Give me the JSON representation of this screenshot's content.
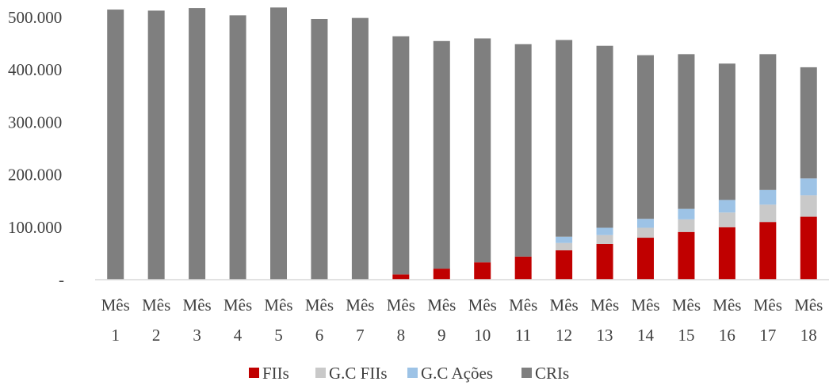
{
  "chart_data": {
    "type": "bar",
    "stacked": true,
    "title": "",
    "xlabel": "",
    "ylabel": "",
    "categories": [
      [
        "Mês",
        "1"
      ],
      [
        "Mês",
        "2"
      ],
      [
        "Mês",
        "3"
      ],
      [
        "Mês",
        "4"
      ],
      [
        "Mês",
        "5"
      ],
      [
        "Mês",
        "6"
      ],
      [
        "Mês",
        "7"
      ],
      [
        "Mês",
        "8"
      ],
      [
        "Mês",
        "9"
      ],
      [
        "Mês",
        "10"
      ],
      [
        "Mês",
        "11"
      ],
      [
        "Mês",
        "12"
      ],
      [
        "Mês",
        "13"
      ],
      [
        "Mês",
        "14"
      ],
      [
        "Mês",
        "15"
      ],
      [
        "Mês",
        "16"
      ],
      [
        "Mês",
        "17"
      ],
      [
        "Mês",
        "18"
      ]
    ],
    "ylim": [
      0,
      500000
    ],
    "yticks": [
      {
        "value": 0,
        "label": "-"
      },
      {
        "value": 100000,
        "label": "100.000"
      },
      {
        "value": 200000,
        "label": "200.000"
      },
      {
        "value": 300000,
        "label": "300.000"
      },
      {
        "value": 400000,
        "label": "400.000"
      },
      {
        "value": 500000,
        "label": "500.000"
      }
    ],
    "grid": false,
    "legend_position": "bottom",
    "series": [
      {
        "name": "FIIs",
        "color": "#c00000",
        "values": [
          0,
          0,
          0,
          0,
          0,
          0,
          0,
          10000,
          21000,
          33000,
          44000,
          56000,
          68000,
          80000,
          91000,
          100000,
          110000,
          120000
        ]
      },
      {
        "name": "G.C FIIs",
        "color": "#c9c9c9",
        "values": [
          0,
          0,
          0,
          0,
          0,
          0,
          0,
          0,
          0,
          0,
          0,
          14000,
          17000,
          19000,
          24000,
          28000,
          33000,
          41000
        ]
      },
      {
        "name": "G.C Ações",
        "color": "#9dc3e6",
        "values": [
          0,
          0,
          0,
          0,
          0,
          0,
          0,
          0,
          0,
          0,
          0,
          12000,
          14000,
          17000,
          20000,
          24000,
          28000,
          32000
        ]
      },
      {
        "name": "CRIs",
        "color": "#7f7f7f",
        "values": [
          515000,
          513000,
          518000,
          504000,
          519000,
          497000,
          499000,
          454000,
          434000,
          427000,
          405000,
          375000,
          347000,
          312000,
          295000,
          260000,
          259000,
          212000
        ]
      }
    ]
  }
}
